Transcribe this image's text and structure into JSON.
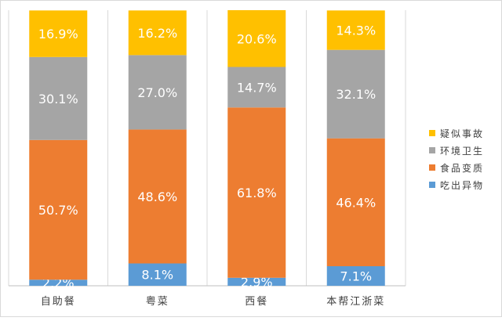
{
  "chart_data": {
    "type": "bar",
    "stacked": true,
    "percent": true,
    "categories": [
      "自助餐",
      "粤菜",
      "西餐",
      "本帮江浙菜"
    ],
    "series": [
      {
        "name": "吃出异物",
        "color": "#5B9BD5",
        "values": [
          2.2,
          8.1,
          2.9,
          7.1
        ],
        "labels": [
          "2.2%",
          "8.1%",
          "2.9%",
          "7.1%"
        ]
      },
      {
        "name": "食品变质",
        "color": "#ED7D31",
        "values": [
          50.7,
          48.6,
          61.8,
          46.4
        ],
        "labels": [
          "50.7%",
          "48.6%",
          "61.8%",
          "46.4%"
        ]
      },
      {
        "name": "环境卫生",
        "color": "#A5A5A5",
        "values": [
          30.1,
          27.0,
          14.7,
          32.1
        ],
        "labels": [
          "30.1%",
          "27.0%",
          "14.7%",
          "32.1%"
        ]
      },
      {
        "name": "疑似事故",
        "color": "#FFC000",
        "values": [
          16.9,
          16.2,
          20.6,
          14.3
        ],
        "labels": [
          "16.9%",
          "16.2%",
          "20.6%",
          "14.3%"
        ]
      }
    ],
    "legend_order": [
      3,
      2,
      1,
      0
    ],
    "legend_position": "right",
    "ylim": [
      0,
      100
    ],
    "grid": true
  }
}
